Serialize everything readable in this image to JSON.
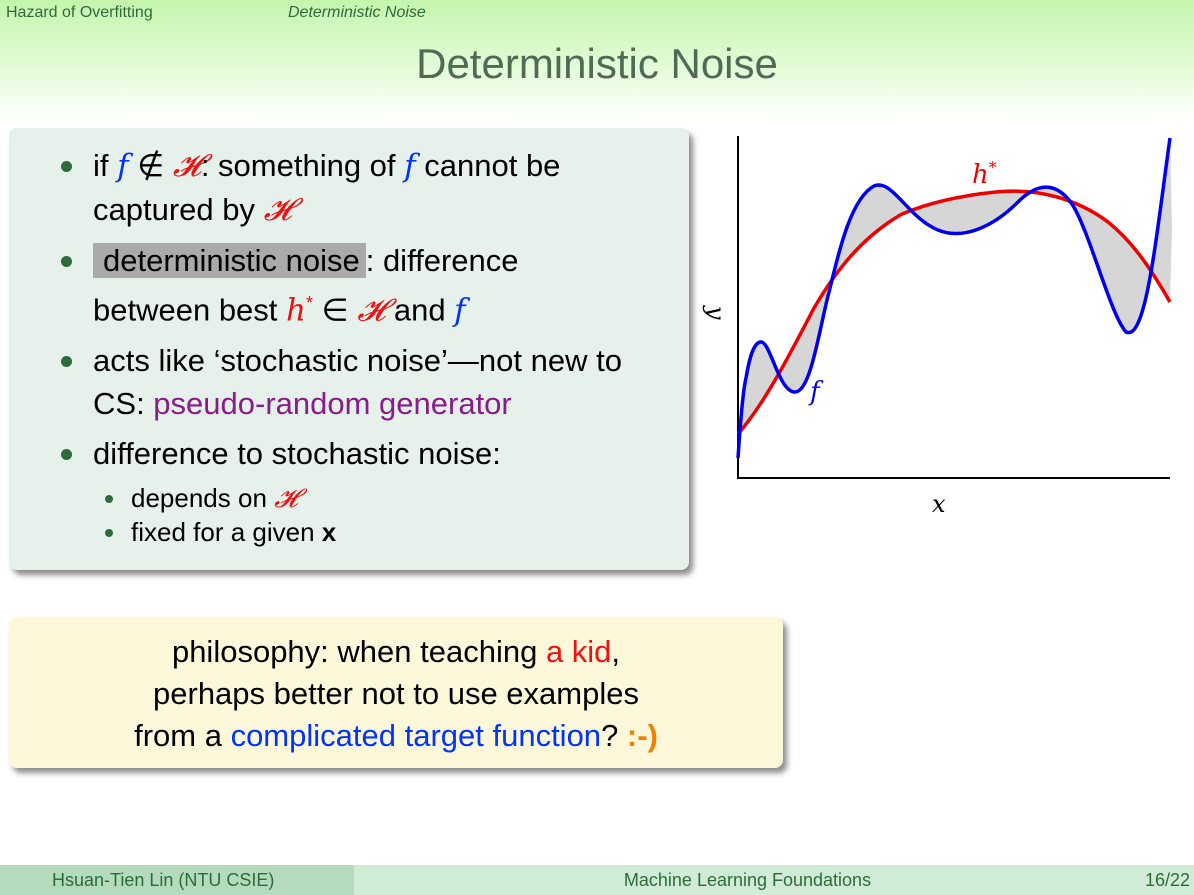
{
  "nav": {
    "section": "Hazard of Overfitting",
    "subsection": "Deterministic Noise"
  },
  "title": "Deterministic Noise",
  "bullets": {
    "b1": {
      "p1": "if ",
      "f": "f",
      "notin": " ∉ ",
      "H": "𝓗",
      "p2": ": something of ",
      "f2": "f",
      "p3": " cannot be captured by ",
      "H2": "𝓗"
    },
    "b2": {
      "hl": "deterministic noise",
      "p1": ": difference between best ",
      "h": "h",
      "star": "*",
      "in": " ∈ ",
      "H": "𝓗",
      "p2": " and ",
      "f": "f"
    },
    "b3": {
      "p1": "acts like ‘stochastic noise’—not new to CS: ",
      "purple": "pseudo-random generator"
    },
    "b4": {
      "p1": "difference to stochastic noise:"
    },
    "sub1": {
      "p1": "depends on ",
      "H": "𝓗"
    },
    "sub2": {
      "p1": "fixed for a given ",
      "x": "x"
    }
  },
  "note": {
    "l1a": "philosophy: when teaching ",
    "l1b": "a kid",
    "l1c": ",",
    "l2": "perhaps better not to use examples",
    "l3a": "from a ",
    "l3b": "complicated target function",
    "l3c": "? ",
    "l3d": ":-)"
  },
  "chart": {
    "xlabel": "x",
    "ylabel": "y",
    "label_h": "h",
    "label_h_star": "*",
    "label_f": "f",
    "colors": {
      "f": "#0000ee",
      "h": "#ee0000",
      "fill": "#d6d6d6"
    }
  },
  "footer": {
    "author": "Hsuan-Tien Lin  (NTU CSIE)",
    "course": "Machine Learning Foundations",
    "page": "16/22"
  }
}
